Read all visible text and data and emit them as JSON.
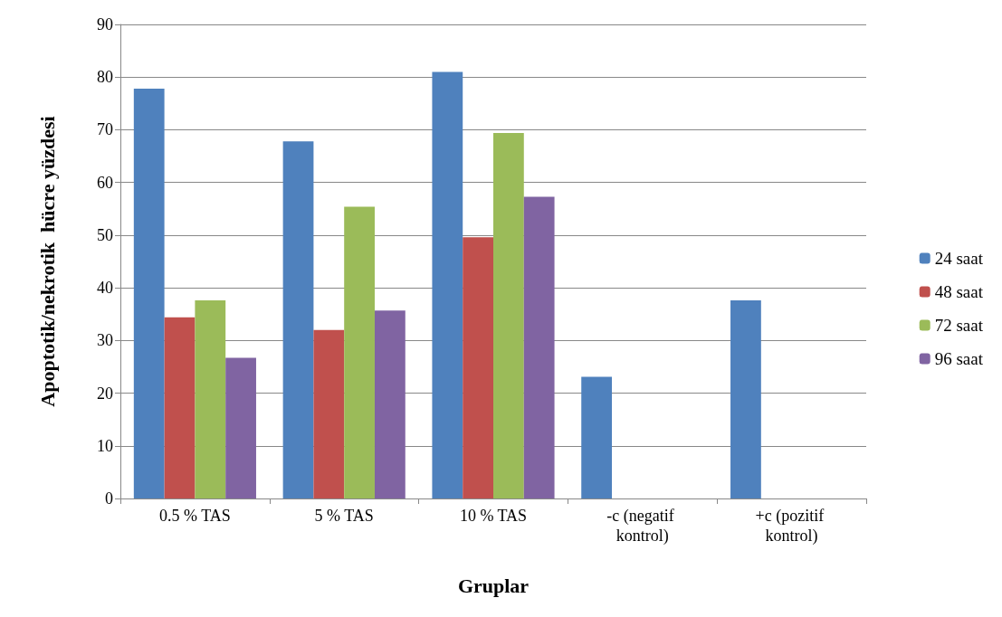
{
  "chart_data": {
    "type": "bar",
    "xlabel": "Gruplar",
    "ylabel": "Apoptotik/nekrotik  hücre yüzdesi",
    "categories": [
      "0.5 % TAS",
      "5 % TAS",
      "10 % TAS",
      "-c (negatif kontrol)",
      "+c (pozitif kontrol)"
    ],
    "series": [
      {
        "name": "24 saat",
        "color": "#4f81bd",
        "values": [
          77.8,
          67.8,
          81,
          23.1,
          37.6
        ]
      },
      {
        "name": "48 saat",
        "color": "#c0504d",
        "values": [
          34.4,
          32,
          49.6,
          null,
          null
        ]
      },
      {
        "name": "72 saat",
        "color": "#9bbb59",
        "values": [
          37.6,
          55.4,
          69.4,
          null,
          null
        ]
      },
      {
        "name": "96 saat",
        "color": "#8064a2",
        "values": [
          26.7,
          35.7,
          57.3,
          null,
          null
        ]
      }
    ],
    "ylim": [
      0,
      90
    ],
    "yticks": [
      0,
      10,
      20,
      30,
      40,
      50,
      60,
      70,
      80,
      90
    ],
    "grid": "y",
    "legend": "right"
  }
}
